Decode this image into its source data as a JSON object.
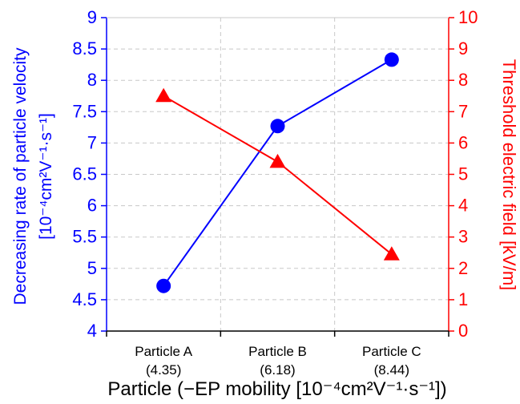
{
  "chart_data": {
    "type": "line",
    "categories": [
      "Particle A",
      "Particle B",
      "Particle C"
    ],
    "category_values": [
      "(4.35)",
      "(6.18)",
      "(8.44)"
    ],
    "xlabel": "Particle (−EP mobility [10⁻⁴cm²V⁻¹·s⁻¹])",
    "ylabel_left": {
      "line1": "Decreasing rate of particle velocity",
      "line2": "[10⁻⁴cm²V⁻¹·s⁻¹]"
    },
    "ylabel_right": "Threshold electric field [kV/m]",
    "ylim_left": [
      4,
      9
    ],
    "ylim_right": [
      0,
      10
    ],
    "yticks_left": [
      "4",
      "4.5",
      "5",
      "5.5",
      "6",
      "6.5",
      "7",
      "7.5",
      "8",
      "8.5",
      "9"
    ],
    "yticks_right": [
      "0",
      "1",
      "2",
      "3",
      "4",
      "5",
      "6",
      "7",
      "8",
      "9",
      "10"
    ],
    "grid": true,
    "series": [
      {
        "axis": "left",
        "color": "#0000ff",
        "marker": "circle",
        "values": [
          4.72,
          7.27,
          8.33
        ]
      },
      {
        "axis": "right",
        "color": "#ff0000",
        "marker": "triangle",
        "values": [
          7.5,
          5.4,
          2.45
        ]
      }
    ]
  }
}
